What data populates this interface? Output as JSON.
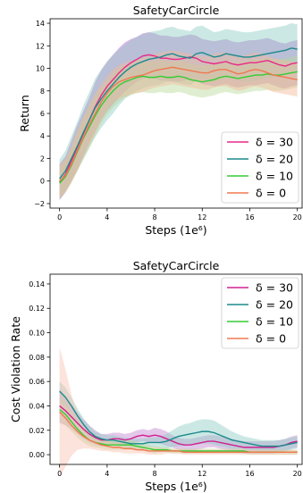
{
  "chart_data": [
    {
      "type": "line",
      "title": "SafetyCarCircle",
      "xlabel": "Steps (1e⁶)",
      "ylabel": "Return",
      "xlim": [
        -0.8,
        20.4
      ],
      "ylim": [
        -2.4,
        14.4
      ],
      "x_ticks": [
        0,
        4,
        8,
        12,
        16,
        20
      ],
      "y_ticks": [
        -2,
        0,
        2,
        4,
        6,
        8,
        10,
        12,
        14
      ],
      "legend": "lower-right",
      "grid": false,
      "x": [
        0,
        0.5,
        1,
        1.5,
        2,
        2.5,
        3,
        3.5,
        4,
        4.5,
        5,
        5.5,
        6,
        6.5,
        7,
        7.5,
        8,
        8.5,
        9,
        9.5,
        10,
        10.5,
        11,
        11.5,
        12,
        12.5,
        13,
        13.5,
        14,
        14.5,
        15,
        15.5,
        16,
        16.5,
        17,
        17.5,
        18,
        18.5,
        19,
        19.5,
        20
      ],
      "series": [
        {
          "name": "δ = 30",
          "color": "#e7298a",
          "band_color": "#b05cc8",
          "values": [
            -0.1,
            0.6,
            1.8,
            3.0,
            4.2,
            5.4,
            6.6,
            7.6,
            8.4,
            9.0,
            9.6,
            10.1,
            10.5,
            10.8,
            11.1,
            11.2,
            11.1,
            10.9,
            10.9,
            10.8,
            10.8,
            10.9,
            11.0,
            10.9,
            10.6,
            10.5,
            10.4,
            10.5,
            10.6,
            10.4,
            10.3,
            10.4,
            10.5,
            10.5,
            10.6,
            10.7,
            10.5,
            10.3,
            10.2,
            10.4,
            10.5
          ],
          "band": [
            1.6,
            1.6,
            1.8,
            2.0,
            2.0,
            2.0,
            2.2,
            2.2,
            2.2,
            2.2,
            2.2,
            2.2,
            2.1,
            2.0,
            2.0,
            2.0,
            2.0,
            2.0,
            2.0,
            2.0,
            2.0,
            2.0,
            2.0,
            2.0,
            2.0,
            2.0,
            2.0,
            2.0,
            2.0,
            2.0,
            2.0,
            2.0,
            2.0,
            2.0,
            2.0,
            2.0,
            2.0,
            2.0,
            2.0,
            2.0,
            2.0
          ]
        },
        {
          "name": "δ = 20",
          "color": "#1b8a8c",
          "band_color": "#8fcbc4",
          "values": [
            0.2,
            0.9,
            2.0,
            3.1,
            4.3,
            5.4,
            6.5,
            7.3,
            8.0,
            8.6,
            9.2,
            9.7,
            10.1,
            10.4,
            10.6,
            10.8,
            10.9,
            11.0,
            11.2,
            11.3,
            11.1,
            11.0,
            10.9,
            11.3,
            11.4,
            11.2,
            11.0,
            11.1,
            11.3,
            11.2,
            11.1,
            11.0,
            11.0,
            11.1,
            11.2,
            11.3,
            11.4,
            11.5,
            11.6,
            11.8,
            11.7
          ],
          "band": [
            1.7,
            1.8,
            2.0,
            2.2,
            2.4,
            2.5,
            2.6,
            2.6,
            2.6,
            2.6,
            2.5,
            2.4,
            2.4,
            2.4,
            2.4,
            2.4,
            2.4,
            2.4,
            2.4,
            2.4,
            2.4,
            2.4,
            2.4,
            2.4,
            2.4,
            2.3,
            2.2,
            2.2,
            2.2,
            2.2,
            2.2,
            2.2,
            2.2,
            2.2,
            2.2,
            2.2,
            2.2,
            2.2,
            2.2,
            2.2,
            2.2
          ]
        },
        {
          "name": "δ = 10",
          "color": "#33cc33",
          "band_color": "#b8d99a",
          "values": [
            -0.2,
            0.4,
            1.4,
            2.6,
            3.8,
            4.8,
            5.8,
            6.7,
            7.4,
            8.0,
            8.5,
            8.8,
            9.0,
            9.2,
            9.3,
            9.2,
            9.2,
            9.3,
            9.2,
            9.2,
            9.3,
            9.2,
            9.0,
            8.9,
            8.8,
            8.9,
            9.0,
            9.2,
            9.3,
            9.2,
            9.1,
            9.2,
            9.3,
            9.4,
            9.4,
            9.5,
            9.4,
            9.4,
            9.5,
            9.6,
            9.7
          ],
          "band": [
            1.4,
            1.4,
            1.6,
            1.7,
            1.8,
            1.8,
            1.8,
            1.6,
            1.5,
            1.5,
            1.5,
            1.4,
            1.4,
            1.4,
            1.4,
            1.4,
            1.4,
            1.4,
            1.4,
            1.4,
            1.4,
            1.4,
            1.4,
            1.4,
            1.4,
            1.4,
            1.4,
            1.4,
            1.4,
            1.4,
            1.4,
            1.4,
            1.4,
            1.4,
            1.4,
            1.4,
            1.4,
            1.4,
            1.4,
            1.4,
            1.4
          ]
        },
        {
          "name": "δ = 0",
          "color": "#f07850",
          "band_color": "#f5b89a",
          "values": [
            0.0,
            0.5,
            1.5,
            2.7,
            3.9,
            5.0,
            6.0,
            7.0,
            7.8,
            8.4,
            8.8,
            9.0,
            9.2,
            9.3,
            9.4,
            9.6,
            9.8,
            9.9,
            10.0,
            10.1,
            10.0,
            9.9,
            9.8,
            9.7,
            9.6,
            9.6,
            9.8,
            9.9,
            9.9,
            9.7,
            9.5,
            9.6,
            9.8,
            9.9,
            9.8,
            9.6,
            9.4,
            9.3,
            9.2,
            9.1,
            9.0
          ],
          "band": [
            1.5,
            1.5,
            1.6,
            1.8,
            1.8,
            1.8,
            1.8,
            1.6,
            1.5,
            1.5,
            1.5,
            1.5,
            1.5,
            1.5,
            1.5,
            1.5,
            1.5,
            1.5,
            1.5,
            1.5,
            1.5,
            1.5,
            1.5,
            1.5,
            1.5,
            1.5,
            1.5,
            1.5,
            1.5,
            1.5,
            1.5,
            1.5,
            1.5,
            1.5,
            1.5,
            1.5,
            1.5,
            1.5,
            1.5,
            1.5,
            1.5
          ]
        }
      ]
    },
    {
      "type": "line",
      "title": "SafetyCarCircle",
      "xlabel": "Steps (1e⁶)",
      "ylabel": "Cost Violation Rate",
      "xlim": [
        -0.8,
        20.4
      ],
      "ylim": [
        -0.008,
        0.148
      ],
      "x_ticks": [
        0,
        4,
        8,
        12,
        16,
        20
      ],
      "y_ticks": [
        0.0,
        0.02,
        0.04,
        0.06,
        0.08,
        0.1,
        0.12,
        0.14
      ],
      "y_tick_labels": [
        "0.00",
        "0.02",
        "0.04",
        "0.06",
        "0.08",
        "0.10",
        "0.12",
        "0.14"
      ],
      "legend": "top-right",
      "grid": false,
      "x": [
        0,
        0.5,
        1,
        1.5,
        2,
        2.5,
        3,
        3.5,
        4,
        4.5,
        5,
        5.5,
        6,
        6.5,
        7,
        7.5,
        8,
        8.5,
        9,
        9.5,
        10,
        10.5,
        11,
        11.5,
        12,
        12.5,
        13,
        13.5,
        14,
        14.5,
        15,
        15.5,
        16,
        16.5,
        17,
        17.5,
        18,
        18.5,
        19,
        19.5,
        20
      ],
      "series": [
        {
          "name": "δ = 30",
          "color": "#d02090",
          "band_color": "#c085d0",
          "values": [
            0.04,
            0.036,
            0.031,
            0.026,
            0.021,
            0.017,
            0.014,
            0.012,
            0.012,
            0.013,
            0.013,
            0.012,
            0.013,
            0.015,
            0.016,
            0.015,
            0.016,
            0.015,
            0.013,
            0.011,
            0.009,
            0.008,
            0.008,
            0.009,
            0.01,
            0.011,
            0.011,
            0.01,
            0.009,
            0.008,
            0.007,
            0.006,
            0.006,
            0.006,
            0.006,
            0.006,
            0.006,
            0.007,
            0.008,
            0.01,
            0.011
          ],
          "band": [
            0.014,
            0.012,
            0.01,
            0.009,
            0.008,
            0.007,
            0.006,
            0.005,
            0.005,
            0.005,
            0.005,
            0.005,
            0.005,
            0.005,
            0.005,
            0.005,
            0.006,
            0.006,
            0.006,
            0.005,
            0.005,
            0.005,
            0.005,
            0.005,
            0.005,
            0.005,
            0.005,
            0.005,
            0.005,
            0.005,
            0.005,
            0.005,
            0.005,
            0.005,
            0.005,
            0.005,
            0.005,
            0.005,
            0.005,
            0.005,
            0.005
          ]
        },
        {
          "name": "δ = 20",
          "color": "#1b8a8c",
          "band_color": "#8fcbc4",
          "values": [
            0.052,
            0.047,
            0.04,
            0.032,
            0.025,
            0.019,
            0.015,
            0.013,
            0.012,
            0.012,
            0.011,
            0.01,
            0.009,
            0.009,
            0.009,
            0.01,
            0.01,
            0.01,
            0.011,
            0.013,
            0.015,
            0.016,
            0.017,
            0.018,
            0.019,
            0.019,
            0.018,
            0.016,
            0.014,
            0.012,
            0.011,
            0.01,
            0.009,
            0.008,
            0.007,
            0.007,
            0.007,
            0.007,
            0.008,
            0.009,
            0.01
          ],
          "band": [
            0.008,
            0.008,
            0.007,
            0.006,
            0.005,
            0.005,
            0.004,
            0.004,
            0.004,
            0.004,
            0.004,
            0.004,
            0.004,
            0.004,
            0.004,
            0.004,
            0.004,
            0.005,
            0.006,
            0.007,
            0.008,
            0.009,
            0.009,
            0.01,
            0.01,
            0.01,
            0.01,
            0.009,
            0.008,
            0.007,
            0.006,
            0.005,
            0.005,
            0.005,
            0.005,
            0.005,
            0.005,
            0.005,
            0.005,
            0.005,
            0.005
          ]
        },
        {
          "name": "δ = 10",
          "color": "#33cc33",
          "band_color": "#b8d99a",
          "values": [
            0.037,
            0.033,
            0.027,
            0.021,
            0.016,
            0.012,
            0.01,
            0.009,
            0.008,
            0.008,
            0.008,
            0.008,
            0.008,
            0.007,
            0.006,
            0.005,
            0.004,
            0.004,
            0.004,
            0.003,
            0.003,
            0.003,
            0.003,
            0.003,
            0.003,
            0.003,
            0.003,
            0.003,
            0.003,
            0.003,
            0.003,
            0.003,
            0.002,
            0.002,
            0.002,
            0.002,
            0.002,
            0.002,
            0.002,
            0.002,
            0.002
          ],
          "band": [
            0.01,
            0.009,
            0.008,
            0.007,
            0.006,
            0.005,
            0.004,
            0.004,
            0.004,
            0.004,
            0.004,
            0.004,
            0.004,
            0.003,
            0.003,
            0.003,
            0.003,
            0.002,
            0.002,
            0.002,
            0.002,
            0.002,
            0.002,
            0.002,
            0.002,
            0.002,
            0.002,
            0.002,
            0.002,
            0.002,
            0.002,
            0.002,
            0.002,
            0.002,
            0.002,
            0.002,
            0.002,
            0.002,
            0.002,
            0.002,
            0.002
          ]
        },
        {
          "name": "δ = 0",
          "color": "#f07850",
          "band_color": "#f9c0b0",
          "values": [
            0.035,
            0.03,
            0.024,
            0.019,
            0.015,
            0.012,
            0.01,
            0.008,
            0.007,
            0.006,
            0.006,
            0.005,
            0.005,
            0.004,
            0.004,
            0.003,
            0.003,
            0.003,
            0.003,
            0.003,
            0.003,
            0.002,
            0.002,
            0.002,
            0.002,
            0.002,
            0.002,
            0.002,
            0.002,
            0.002,
            0.002,
            0.002,
            0.002,
            0.002,
            0.002,
            0.002,
            0.002,
            0.002,
            0.002,
            0.002,
            0.002
          ],
          "band": [
            0.053,
            0.04,
            0.025,
            0.015,
            0.01,
            0.007,
            0.006,
            0.005,
            0.004,
            0.004,
            0.004,
            0.004,
            0.004,
            0.003,
            0.003,
            0.003,
            0.003,
            0.003,
            0.002,
            0.002,
            0.002,
            0.002,
            0.002,
            0.002,
            0.002,
            0.002,
            0.002,
            0.002,
            0.002,
            0.002,
            0.002,
            0.002,
            0.002,
            0.002,
            0.002,
            0.002,
            0.002,
            0.002,
            0.002,
            0.002,
            0.002
          ]
        }
      ]
    }
  ]
}
